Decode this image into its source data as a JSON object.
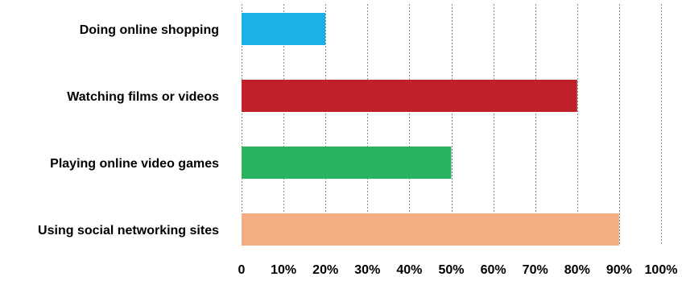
{
  "chart_data": {
    "type": "bar",
    "orientation": "horizontal",
    "categories": [
      "Doing online shopping",
      "Watching films or videos",
      "Playing online video games",
      "Using social networking sites"
    ],
    "values": [
      20,
      80,
      50,
      90
    ],
    "bar_colors": [
      "#1cb0e6",
      "#c0202a",
      "#2ab35e",
      "#f5ae84"
    ],
    "xlim": [
      0,
      100
    ],
    "xticks": [
      0,
      10,
      20,
      30,
      40,
      50,
      60,
      70,
      80,
      90,
      100
    ],
    "xtick_labels": [
      "0",
      "10%",
      "20%",
      "30%",
      "40%",
      "50%",
      "60%",
      "70%",
      "80%",
      "90%",
      "100%"
    ],
    "grid": "vertical-dashed",
    "legend": "none"
  }
}
